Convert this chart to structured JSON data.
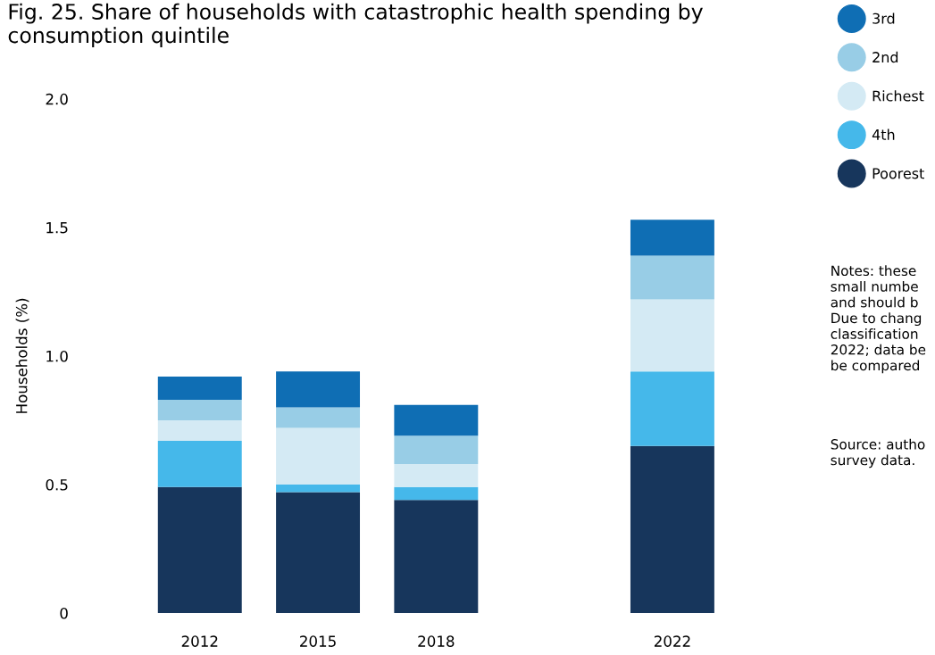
{
  "chart_data": {
    "type": "bar",
    "stacked": true,
    "title": "Fig. 25. Share of households with catastrophic health spending by\nconsumption quintile",
    "ylabel": "Households (%)",
    "categories": [
      "2012",
      "2015",
      "2018",
      null,
      "2022"
    ],
    "series": [
      {
        "name": "Poorest",
        "color": "#17365c",
        "values": [
          0.49,
          0.47,
          0.44,
          null,
          0.65
        ]
      },
      {
        "name": "4th",
        "color": "#45b8ea",
        "values": [
          0.18,
          0.03,
          0.05,
          null,
          0.29
        ]
      },
      {
        "name": "Richest",
        "color": "#d4eaf4",
        "values": [
          0.08,
          0.22,
          0.09,
          null,
          0.28
        ]
      },
      {
        "name": "2nd",
        "color": "#98cde6",
        "values": [
          0.08,
          0.08,
          0.11,
          null,
          0.17
        ]
      },
      {
        "name": "3rd",
        "color": "#0f6eb4",
        "values": [
          0.09,
          0.14,
          0.12,
          null,
          0.14
        ]
      }
    ],
    "ylim": [
      0,
      2.0
    ],
    "yticks": [
      0,
      0.5,
      {
        "value": 1.0,
        "label": "1.0"
      },
      1.5,
      {
        "value": 2.0,
        "label": "2.0"
      }
    ],
    "grid": false,
    "legend": "top right",
    "annotations": [
      "Notes: these\nsmall numbe\nand should b\nDue to chang\nclassification\n2022; data be\nbe compared",
      "Source: autho\nsurvey data."
    ]
  }
}
